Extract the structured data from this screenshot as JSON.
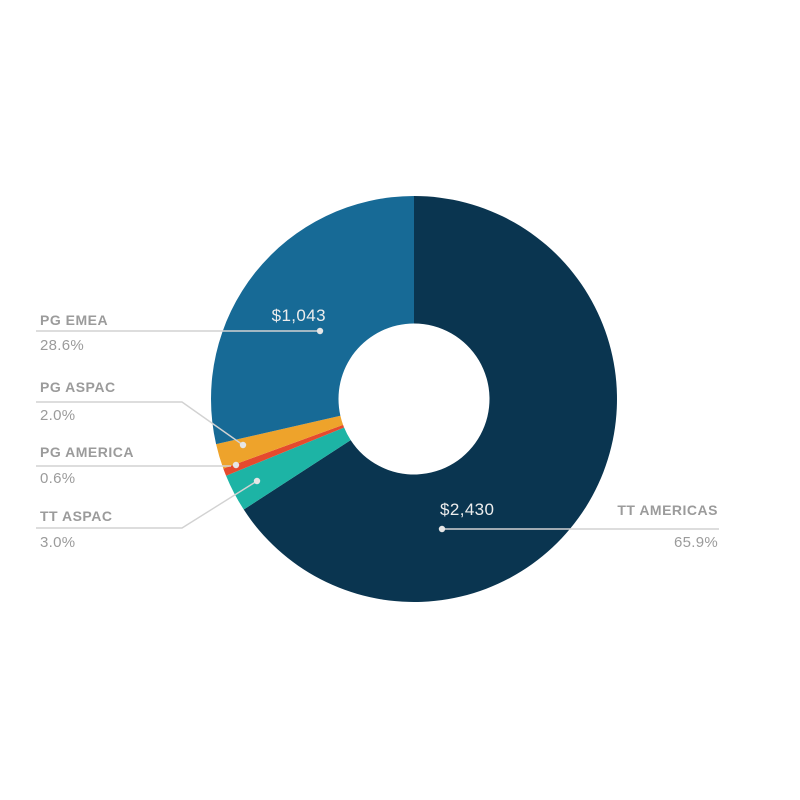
{
  "chart_data": {
    "type": "pie",
    "subtype": "donut",
    "title": "",
    "direction": "clockwise",
    "start_angle_deg": 0,
    "inner_radius_ratio": 0.37,
    "legend_position": "callout-labels",
    "slices": [
      {
        "label": "TT AMERICAS",
        "percent": 65.9,
        "value_label": "$2,430",
        "color": "#0a3550"
      },
      {
        "label": "TT ASPAC",
        "percent": 3.0,
        "color": "#1db4a5"
      },
      {
        "label": "PG AMERICA",
        "percent": 0.6,
        "color": "#e54a2e"
      },
      {
        "label": "PG ASPAC",
        "percent": 2.0,
        "color": "#eea32b"
      },
      {
        "label": "PG EMEA",
        "percent": 28.6,
        "value_label": "$1,043",
        "color": "#176a96"
      }
    ]
  },
  "legend": {
    "left": [
      {
        "name": "PG EMEA",
        "pct": "28.6%"
      },
      {
        "name": "PG ASPAC",
        "pct": "2.0%"
      },
      {
        "name": "PG AMERICA",
        "pct": "0.6%"
      },
      {
        "name": "TT ASPAC",
        "pct": "3.0%"
      }
    ],
    "right": [
      {
        "name": "TT AMERICAS",
        "pct": "65.9%"
      }
    ]
  },
  "value_labels": {
    "pg_emea": "$1,043",
    "tt_americas": "$2,430"
  },
  "colors": {
    "leader_line": "#d2d2d2",
    "leader_dot": "#e6e6e6",
    "label_text": "#9b9b9b",
    "value_text": "#ededed",
    "background": "#ffffff"
  }
}
